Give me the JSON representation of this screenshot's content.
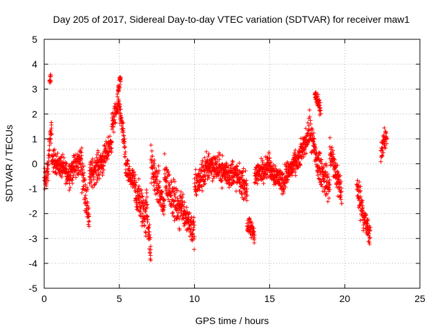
{
  "chart_data": {
    "type": "scatter",
    "title": "Day 205 of 2017, Sidereal Day-to-day VTEC variation (SDTVAR) for receiver maw1",
    "xlabel": "GPS time / hours",
    "ylabel": "SDTVAR / TECUs",
    "xlim": [
      0,
      25
    ],
    "ylim": [
      -5,
      5
    ],
    "xticks": [
      0,
      5,
      10,
      15,
      20,
      25
    ],
    "yticks": [
      -5,
      -4,
      -3,
      -2,
      -1,
      0,
      1,
      2,
      3,
      4,
      5
    ],
    "grid": true,
    "marker": "+",
    "color": "#ff0000",
    "series": [
      {
        "name": "maw1",
        "segments": [
          {
            "x0": 0.0,
            "x1": 0.3,
            "center": [
              -0.8,
              -0.2
            ],
            "spread": 0.6
          },
          {
            "x0": 0.3,
            "x1": 0.5,
            "center": [
              0.5,
              1.5
            ],
            "spread": 0.5
          },
          {
            "x0": 0.35,
            "x1": 0.45,
            "center": [
              3.2,
              3.5
            ],
            "spread": 0.2
          },
          {
            "x0": 0.5,
            "x1": 1.5,
            "center": [
              0.2,
              -0.3
            ],
            "spread": 0.5
          },
          {
            "x0": 1.5,
            "x1": 2.5,
            "center": [
              -0.5,
              0.2
            ],
            "spread": 0.6
          },
          {
            "x0": 2.5,
            "x1": 3.0,
            "center": [
              -0.2,
              -2.2
            ],
            "spread": 0.8
          },
          {
            "x0": 3.0,
            "x1": 4.0,
            "center": [
              -0.5,
              0.2
            ],
            "spread": 0.6
          },
          {
            "x0": 4.0,
            "x1": 4.5,
            "center": [
              0.2,
              1.0
            ],
            "spread": 0.5
          },
          {
            "x0": 4.5,
            "x1": 5.0,
            "center": [
              1.5,
              2.5
            ],
            "spread": 0.5
          },
          {
            "x0": 4.9,
            "x1": 5.1,
            "center": [
              3.0,
              3.4
            ],
            "spread": 0.3
          },
          {
            "x0": 5.0,
            "x1": 5.4,
            "center": [
              2.2,
              0.5
            ],
            "spread": 0.5
          },
          {
            "x0": 5.4,
            "x1": 6.0,
            "center": [
              -0.2,
              -0.8
            ],
            "spread": 0.5
          },
          {
            "x0": 6.0,
            "x1": 6.8,
            "center": [
              -1.0,
              -2.2
            ],
            "spread": 0.9
          },
          {
            "x0": 6.8,
            "x1": 7.1,
            "center": [
              -1.5,
              -3.8
            ],
            "spread": 0.8
          },
          {
            "x0": 7.1,
            "x1": 8.0,
            "center": [
              0.0,
              -1.8
            ],
            "spread": 0.8
          },
          {
            "x0": 8.0,
            "x1": 9.0,
            "center": [
              -0.5,
              -2.0
            ],
            "spread": 0.8
          },
          {
            "x0": 9.0,
            "x1": 10.0,
            "center": [
              -1.5,
              -2.8
            ],
            "spread": 0.7
          },
          {
            "x0": 10.0,
            "x1": 11.0,
            "center": [
              -1.0,
              0.0
            ],
            "spread": 0.7
          },
          {
            "x0": 11.0,
            "x1": 12.5,
            "center": [
              0.0,
              -0.5
            ],
            "spread": 0.6
          },
          {
            "x0": 12.5,
            "x1": 13.5,
            "center": [
              -0.3,
              -1.0
            ],
            "spread": 0.6
          },
          {
            "x0": 13.5,
            "x1": 14.0,
            "center": [
              -2.5,
              -2.8
            ],
            "spread": 0.4
          },
          {
            "x0": 14.0,
            "x1": 15.0,
            "center": [
              -0.5,
              0.0
            ],
            "spread": 0.5
          },
          {
            "x0": 15.0,
            "x1": 16.0,
            "center": [
              -0.2,
              -0.8
            ],
            "spread": 0.5
          },
          {
            "x0": 16.0,
            "x1": 17.0,
            "center": [
              -0.5,
              0.2
            ],
            "spread": 0.5
          },
          {
            "x0": 17.0,
            "x1": 17.6,
            "center": [
              0.3,
              1.2
            ],
            "spread": 0.5
          },
          {
            "x0": 17.6,
            "x1": 18.2,
            "center": [
              1.5,
              0.0
            ],
            "spread": 0.7
          },
          {
            "x0": 18.0,
            "x1": 18.4,
            "center": [
              2.8,
              2.2
            ],
            "spread": 0.3
          },
          {
            "x0": 18.2,
            "x1": 19.0,
            "center": [
              0.0,
              -1.0
            ],
            "spread": 0.7
          },
          {
            "x0": 19.0,
            "x1": 19.8,
            "center": [
              0.5,
              -1.2
            ],
            "spread": 0.7
          },
          {
            "x0": 20.8,
            "x1": 21.2,
            "center": [
              -1.0,
              -1.8
            ],
            "spread": 0.7
          },
          {
            "x0": 21.2,
            "x1": 21.7,
            "center": [
              -2.0,
              -3.0
            ],
            "spread": 0.6
          },
          {
            "x0": 22.4,
            "x1": 22.8,
            "center": [
              0.5,
              1.2
            ],
            "spread": 0.5
          }
        ]
      }
    ]
  }
}
